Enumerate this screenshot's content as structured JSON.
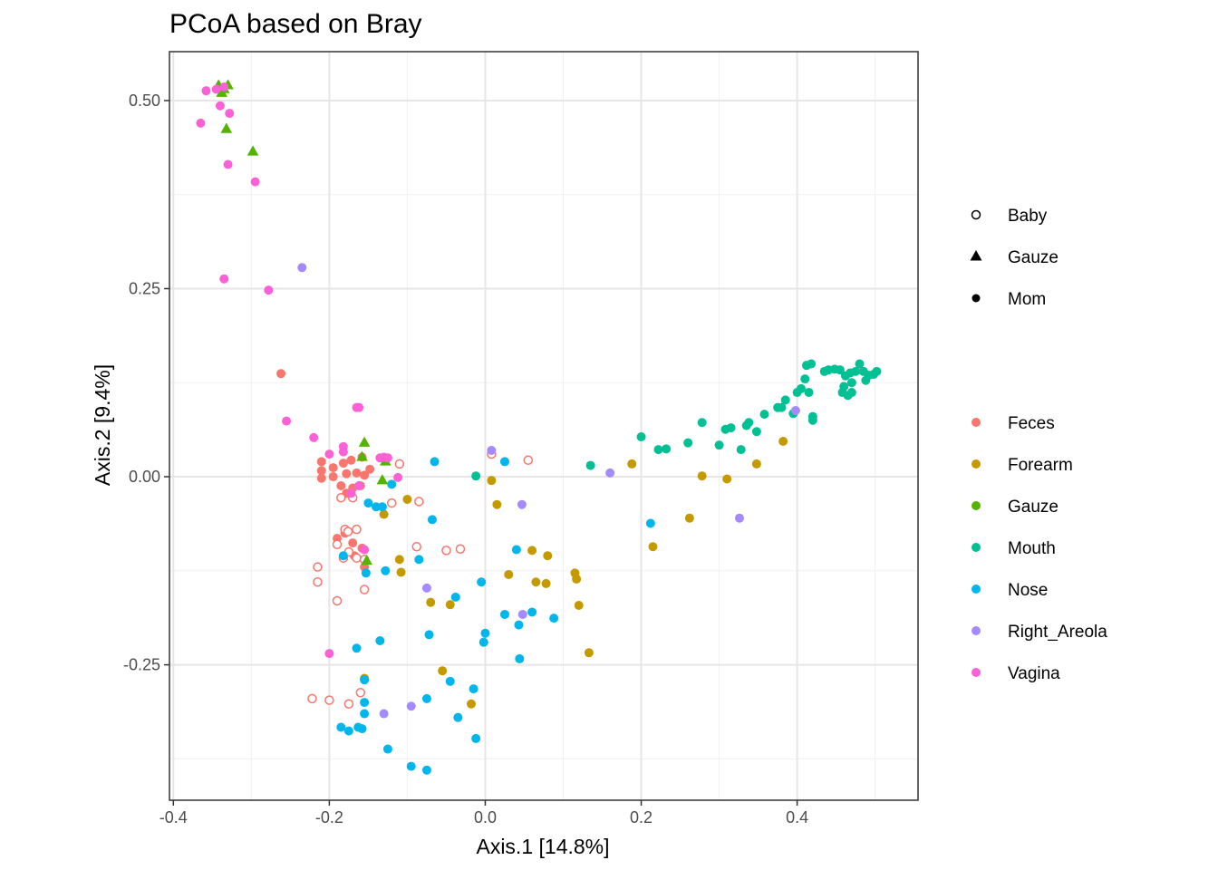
{
  "chart_data": {
    "type": "scatter",
    "title": "PCoA based on Bray",
    "xlabel": "Axis.1   [14.8%]",
    "ylabel": "Axis.2   [9.4%]",
    "xlim": [
      -0.405,
      0.555
    ],
    "ylim": [
      -0.43,
      0.565
    ],
    "x_ticks": [
      -0.4,
      -0.2,
      0.0,
      0.2,
      0.4
    ],
    "x_tick_labels": [
      "-0.4",
      "-0.2",
      "0.0",
      "0.2",
      "0.4"
    ],
    "y_ticks": [
      -0.25,
      0.0,
      0.25,
      0.5
    ],
    "y_tick_labels": [
      "-0.25",
      "0.00",
      "0.25",
      "0.50"
    ],
    "grid": true,
    "legend_position": "right",
    "shape_legend": [
      {
        "label": "Baby",
        "shape": "open-circle"
      },
      {
        "label": "Gauze",
        "shape": "triangle"
      },
      {
        "label": "Mom",
        "shape": "filled-circle"
      }
    ],
    "color_legend": [
      {
        "label": "Feces",
        "color": "#F8766D"
      },
      {
        "label": "Forearm",
        "color": "#C49A00"
      },
      {
        "label": "Gauze",
        "color": "#53B400"
      },
      {
        "label": "Mouth",
        "color": "#00C094"
      },
      {
        "label": "Nose",
        "color": "#00B6EB"
      },
      {
        "label": "Right_Areola",
        "color": "#A58AFF"
      },
      {
        "label": "Vagina",
        "color": "#FB61D7"
      }
    ],
    "series": [
      {
        "group": "Feces",
        "shape": "Mom",
        "points": [
          [
            -0.262,
            0.137
          ],
          [
            -0.21,
            0.02
          ],
          [
            -0.195,
            0.012
          ],
          [
            -0.182,
            0.018
          ],
          [
            -0.172,
            0.022
          ],
          [
            -0.158,
            0.026
          ],
          [
            -0.148,
            0.01
          ],
          [
            -0.21,
            0.008
          ],
          [
            -0.195,
            0.0
          ],
          [
            -0.178,
            0.004
          ],
          [
            -0.165,
            0.005
          ],
          [
            -0.155,
            0.002
          ],
          [
            -0.21,
            -0.002
          ],
          [
            -0.185,
            -0.012
          ],
          [
            -0.17,
            -0.015
          ],
          [
            -0.16,
            -0.012
          ],
          [
            -0.178,
            -0.022
          ],
          [
            -0.19,
            -0.082
          ],
          [
            -0.18,
            -0.075
          ],
          [
            -0.17,
            -0.088
          ],
          [
            -0.158,
            -0.095
          ],
          [
            -0.168,
            -0.105
          ],
          [
            -0.155,
            -0.12
          ]
        ]
      },
      {
        "group": "Feces",
        "shape": "Baby",
        "points": [
          [
            -0.18,
            -0.07
          ],
          [
            -0.176,
            -0.073
          ],
          [
            -0.165,
            -0.07
          ],
          [
            -0.19,
            -0.09
          ],
          [
            -0.175,
            -0.1
          ],
          [
            -0.182,
            -0.108
          ],
          [
            -0.165,
            -0.108
          ],
          [
            -0.155,
            -0.11
          ],
          [
            -0.215,
            -0.12
          ],
          [
            -0.215,
            -0.14
          ],
          [
            -0.19,
            -0.165
          ],
          [
            -0.155,
            -0.15
          ],
          [
            -0.12,
            -0.035
          ],
          [
            -0.085,
            -0.033
          ],
          [
            -0.11,
            0.017
          ],
          [
            -0.088,
            -0.093
          ],
          [
            -0.05,
            -0.098
          ],
          [
            -0.032,
            -0.096
          ],
          [
            -0.222,
            -0.295
          ],
          [
            -0.2,
            -0.297
          ],
          [
            -0.175,
            -0.302
          ],
          [
            -0.16,
            -0.287
          ],
          [
            -0.185,
            -0.028
          ],
          [
            -0.17,
            -0.028
          ],
          [
            0.008,
            0.03
          ],
          [
            0.055,
            0.022
          ]
        ]
      },
      {
        "group": "Forearm",
        "shape": "Mom",
        "points": [
          [
            -0.1,
            -0.03
          ],
          [
            -0.13,
            -0.05
          ],
          [
            -0.11,
            -0.11
          ],
          [
            -0.108,
            -0.127
          ],
          [
            -0.07,
            -0.167
          ],
          [
            -0.045,
            -0.17
          ],
          [
            -0.055,
            -0.258
          ],
          [
            -0.018,
            -0.302
          ],
          [
            0.008,
            -0.005
          ],
          [
            0.015,
            -0.037
          ],
          [
            0.03,
            -0.13
          ],
          [
            0.06,
            -0.098
          ],
          [
            0.065,
            -0.14
          ],
          [
            0.078,
            -0.142
          ],
          [
            0.08,
            -0.105
          ],
          [
            0.115,
            -0.128
          ],
          [
            0.117,
            -0.136
          ],
          [
            0.12,
            -0.171
          ],
          [
            0.133,
            -0.234
          ],
          [
            0.188,
            0.017
          ],
          [
            0.215,
            -0.093
          ],
          [
            0.262,
            -0.055
          ],
          [
            0.278,
            0.001
          ],
          [
            0.31,
            -0.003
          ],
          [
            0.348,
            0.017
          ],
          [
            0.382,
            0.047
          ],
          [
            -0.155,
            -0.268
          ]
        ]
      },
      {
        "group": "Gauze",
        "shape": "Gauze",
        "points": [
          [
            -0.342,
            0.52
          ],
          [
            -0.338,
            0.51
          ],
          [
            -0.335,
            0.515
          ],
          [
            -0.33,
            0.52
          ],
          [
            -0.332,
            0.462
          ],
          [
            -0.298,
            0.432
          ],
          [
            -0.155,
            0.045
          ],
          [
            -0.158,
            0.026
          ],
          [
            -0.128,
            0.02
          ],
          [
            -0.132,
            -0.005
          ],
          [
            -0.152,
            -0.112
          ]
        ]
      },
      {
        "group": "Mouth",
        "shape": "Mom",
        "points": [
          [
            -0.012,
            0.001
          ],
          [
            0.135,
            0.015
          ],
          [
            0.2,
            0.053
          ],
          [
            0.222,
            0.036
          ],
          [
            0.232,
            0.037
          ],
          [
            0.26,
            0.045
          ],
          [
            0.278,
            0.072
          ],
          [
            0.3,
            0.042
          ],
          [
            0.308,
            0.063
          ],
          [
            0.315,
            0.065
          ],
          [
            0.328,
            0.036
          ],
          [
            0.335,
            0.068
          ],
          [
            0.338,
            0.072
          ],
          [
            0.348,
            0.06
          ],
          [
            0.358,
            0.083
          ],
          [
            0.375,
            0.092
          ],
          [
            0.38,
            0.092
          ],
          [
            0.385,
            0.102
          ],
          [
            0.395,
            0.084
          ],
          [
            0.4,
            0.112
          ],
          [
            0.405,
            0.117
          ],
          [
            0.41,
            0.13
          ],
          [
            0.415,
            0.112
          ],
          [
            0.42,
            0.08
          ],
          [
            0.42,
            0.075
          ],
          [
            0.412,
            0.148
          ],
          [
            0.418,
            0.15
          ],
          [
            0.435,
            0.14
          ],
          [
            0.44,
            0.142
          ],
          [
            0.448,
            0.143
          ],
          [
            0.455,
            0.142
          ],
          [
            0.46,
            0.12
          ],
          [
            0.462,
            0.134
          ],
          [
            0.468,
            0.138
          ],
          [
            0.47,
            0.125
          ],
          [
            0.475,
            0.14
          ],
          [
            0.48,
            0.15
          ],
          [
            0.485,
            0.14
          ],
          [
            0.488,
            0.128
          ],
          [
            0.492,
            0.135
          ],
          [
            0.498,
            0.136
          ],
          [
            0.502,
            0.14
          ],
          [
            0.465,
            0.108
          ],
          [
            0.458,
            0.112
          ],
          [
            0.47,
            0.112
          ]
        ]
      },
      {
        "group": "Nose",
        "shape": "Mom",
        "points": [
          [
            -0.065,
            0.02
          ],
          [
            -0.068,
            -0.057
          ],
          [
            -0.12,
            -0.01
          ],
          [
            -0.132,
            -0.04
          ],
          [
            -0.14,
            -0.04
          ],
          [
            -0.15,
            -0.035
          ],
          [
            -0.182,
            -0.105
          ],
          [
            -0.128,
            -0.125
          ],
          [
            -0.153,
            -0.128
          ],
          [
            -0.085,
            -0.11
          ],
          [
            -0.072,
            -0.21
          ],
          [
            -0.038,
            -0.16
          ],
          [
            -0.005,
            -0.14
          ],
          [
            0.0,
            -0.208
          ],
          [
            -0.002,
            -0.22
          ],
          [
            0.025,
            -0.183
          ],
          [
            0.04,
            -0.097
          ],
          [
            0.043,
            -0.197
          ],
          [
            0.044,
            -0.242
          ],
          [
            0.06,
            -0.18
          ],
          [
            0.088,
            -0.188
          ],
          [
            0.212,
            -0.062
          ],
          [
            0.025,
            0.02
          ],
          [
            -0.135,
            -0.218
          ],
          [
            -0.165,
            -0.228
          ],
          [
            -0.155,
            -0.27
          ],
          [
            -0.155,
            -0.3
          ],
          [
            -0.075,
            -0.295
          ],
          [
            -0.045,
            -0.272
          ],
          [
            -0.015,
            -0.282
          ],
          [
            -0.035,
            -0.32
          ],
          [
            -0.012,
            -0.348
          ],
          [
            -0.155,
            -0.315
          ],
          [
            -0.185,
            -0.333
          ],
          [
            -0.175,
            -0.338
          ],
          [
            -0.163,
            -0.333
          ],
          [
            -0.158,
            -0.335
          ],
          [
            -0.125,
            -0.362
          ],
          [
            -0.095,
            -0.385
          ],
          [
            -0.075,
            -0.39
          ]
        ]
      },
      {
        "group": "Right_Areola",
        "shape": "Mom",
        "points": [
          [
            -0.235,
            0.278
          ],
          [
            0.008,
            0.035
          ],
          [
            0.047,
            -0.037
          ],
          [
            0.16,
            0.005
          ],
          [
            -0.075,
            -0.148
          ],
          [
            0.048,
            -0.183
          ],
          [
            -0.095,
            -0.305
          ],
          [
            -0.13,
            -0.315
          ],
          [
            0.326,
            -0.055
          ],
          [
            0.398,
            0.088
          ]
        ]
      },
      {
        "group": "Vagina",
        "shape": "Mom",
        "points": [
          [
            -0.365,
            0.47
          ],
          [
            -0.358,
            0.513
          ],
          [
            -0.345,
            0.515
          ],
          [
            -0.34,
            0.493
          ],
          [
            -0.335,
            0.518
          ],
          [
            -0.33,
            0.415
          ],
          [
            -0.328,
            0.483
          ],
          [
            -0.295,
            0.392
          ],
          [
            -0.335,
            0.263
          ],
          [
            -0.278,
            0.248
          ],
          [
            -0.255,
            0.074
          ],
          [
            -0.22,
            0.052
          ],
          [
            -0.2,
            0.03
          ],
          [
            -0.182,
            0.04
          ],
          [
            -0.182,
            0.033
          ],
          [
            -0.165,
            0.092
          ],
          [
            -0.162,
            0.092
          ],
          [
            -0.135,
            0.025
          ],
          [
            -0.13,
            0.026
          ],
          [
            -0.125,
            0.025
          ],
          [
            -0.112,
            -0.001
          ],
          [
            -0.172,
            -0.022
          ],
          [
            -0.162,
            -0.012
          ],
          [
            -0.155,
            -0.097
          ],
          [
            -0.2,
            -0.235
          ]
        ]
      }
    ]
  }
}
